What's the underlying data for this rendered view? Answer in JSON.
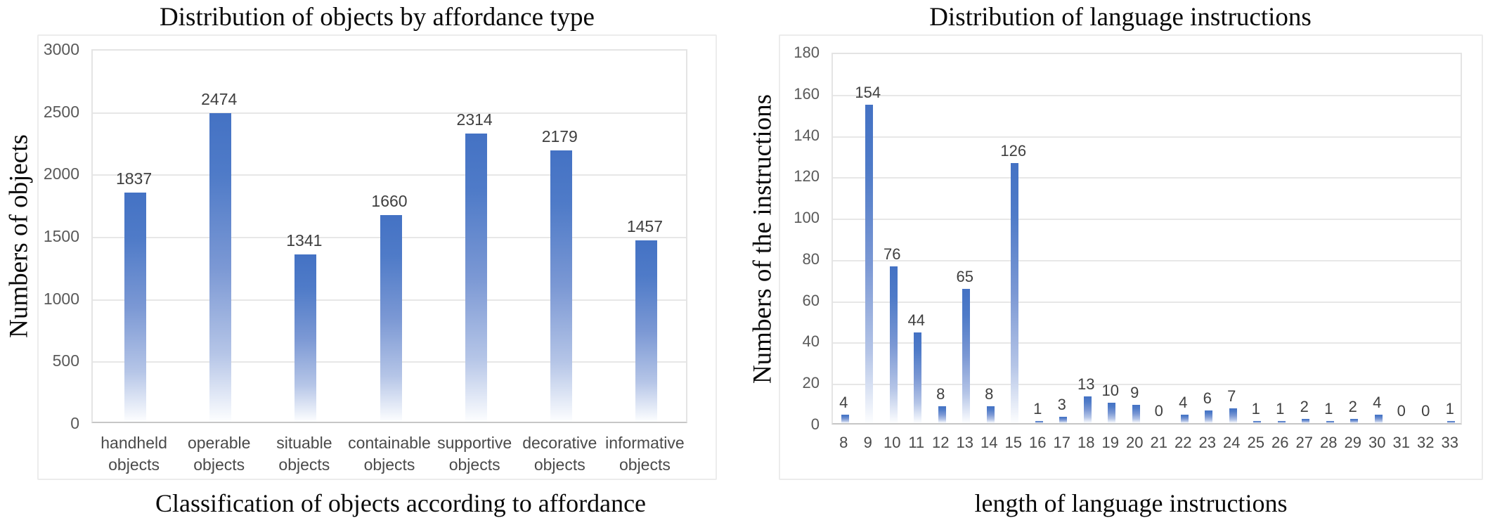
{
  "page": {
    "background": "#ffffff",
    "description": "Two bar charts: distribution of objects by affordance type and distribution of language instruction lengths"
  },
  "colors": {
    "bar_top": "#4472C4",
    "bar_bottom_fade": "#FFFFFF",
    "tick_text": "#595959",
    "value_text": "#3F3F3F",
    "title_text": "#000000",
    "gridline": "#E7E7E7",
    "frame_border": "#ECECEC"
  },
  "chart_data": [
    {
      "type": "bar",
      "title": "Distribution of objects by affordance type",
      "xlabel": "Classification of objects according to affordance",
      "ylabel": "Numbers of objects",
      "categories": [
        "handheld objects",
        "operable objects",
        "situable objects",
        "containable objects",
        "supportive objects",
        "decorative objects",
        "informative objects"
      ],
      "values": [
        1837,
        2474,
        1341,
        1660,
        2314,
        2179,
        1457
      ],
      "ylim": [
        0,
        3000
      ],
      "ytick_step": 500,
      "ytick_labels": [
        "0",
        "500",
        "1000",
        "1500",
        "2000",
        "2500",
        "3000"
      ],
      "grid": true,
      "legend": "none",
      "value_labels_shown": true,
      "bar_color": "#4472C4",
      "bar_fill": "gradient-top-blue-to-white"
    },
    {
      "type": "bar",
      "title": "Distribution of language instructions",
      "xlabel": "length of language instructions",
      "ylabel": "Numbers of the instructions",
      "categories": [
        "8",
        "9",
        "10",
        "11",
        "12",
        "13",
        "14",
        "15",
        "16",
        "17",
        "18",
        "19",
        "20",
        "21",
        "22",
        "23",
        "24",
        "25",
        "26",
        "27",
        "28",
        "29",
        "30",
        "31",
        "32",
        "33"
      ],
      "values": [
        4,
        154,
        76,
        44,
        8,
        65,
        8,
        126,
        1,
        3,
        13,
        10,
        9,
        0,
        4,
        6,
        7,
        1,
        1,
        2,
        1,
        2,
        4,
        0,
        0,
        1
      ],
      "ylim": [
        0,
        180
      ],
      "ytick_step": 20,
      "ytick_labels": [
        "0",
        "20",
        "40",
        "60",
        "80",
        "100",
        "120",
        "140",
        "160",
        "180"
      ],
      "grid": true,
      "legend": "none",
      "value_labels_shown": true,
      "bar_color": "#4472C4",
      "bar_fill": "gradient-top-blue-to-white"
    }
  ]
}
